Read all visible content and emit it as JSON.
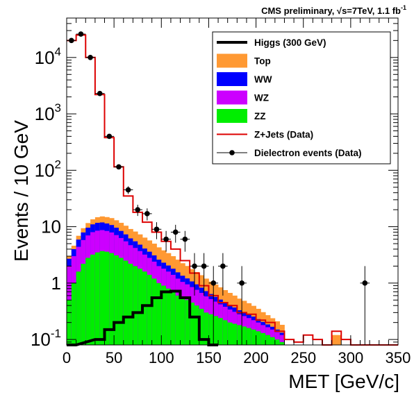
{
  "chart_data": {
    "type": "histogram",
    "caption": {
      "prefix": "CMS preliminary, ",
      "sqrt": "√",
      "energy": "s=7TeV, 1.1 fb",
      "exponent": "-1"
    },
    "xlabel": "MET [GeV/c]",
    "ylabel": "Events / 10 GeV",
    "xlim": [
      0,
      350
    ],
    "ylim": [
      0.08,
      50000
    ],
    "yscale": "log",
    "x_ticks": [
      "0",
      "50",
      "100",
      "150",
      "200",
      "250",
      "300",
      "350"
    ],
    "y_ticks": [
      {
        "value": 0.1,
        "base": "10",
        "exp": "-1"
      },
      {
        "value": 1,
        "base": "1",
        "exp": ""
      },
      {
        "value": 10,
        "base": "10",
        "exp": ""
      },
      {
        "value": 100,
        "base": "10",
        "exp": "2"
      },
      {
        "value": 1000,
        "base": "10",
        "exp": "3"
      },
      {
        "value": 10000,
        "base": "10",
        "exp": "4"
      }
    ],
    "grid": false,
    "legend_position": "top-right",
    "colors": {
      "top": "#ff9933",
      "ww": "#0000ff",
      "wz": "#cc00ff",
      "zz": "#00ee00",
      "higgs": "#000000",
      "zjets": "#dd0000",
      "data": "#000000"
    },
    "legend": [
      {
        "key": "higgs",
        "label": "Higgs (300 GeV)",
        "style": "line-thick"
      },
      {
        "key": "top",
        "label": "Top",
        "style": "fill"
      },
      {
        "key": "ww",
        "label": "WW",
        "style": "fill"
      },
      {
        "key": "wz",
        "label": "WZ",
        "style": "fill"
      },
      {
        "key": "zz",
        "label": "ZZ",
        "style": "fill"
      },
      {
        "key": "zjets",
        "label": "Z+Jets (Data)",
        "style": "line"
      },
      {
        "key": "data",
        "label": "Dielectron events (Data)",
        "style": "marker"
      }
    ],
    "bin_width": 5,
    "stack_bins": {
      "x_lo": [
        0,
        5,
        10,
        15,
        20,
        25,
        30,
        35,
        40,
        45,
        50,
        55,
        60,
        65,
        70,
        75,
        80,
        85,
        90,
        95,
        100,
        105,
        110,
        115,
        120,
        125,
        130,
        135,
        140,
        145,
        150,
        155,
        160,
        165,
        170,
        175,
        180,
        185,
        190,
        195,
        200,
        205,
        210,
        215,
        220,
        225
      ],
      "zz": [
        0.5,
        1.0,
        1.6,
        2.2,
        2.8,
        3.2,
        3.5,
        3.7,
        3.6,
        3.4,
        3.1,
        2.8,
        2.5,
        2.2,
        2.0,
        1.8,
        1.6,
        1.4,
        1.2,
        1.0,
        0.9,
        0.8,
        0.7,
        0.6,
        0.55,
        0.5,
        0.45,
        0.4,
        0.35,
        0.3,
        0.28,
        0.26,
        0.24,
        0.22,
        0.2,
        0.19,
        0.18,
        0.17,
        0.16,
        0.15,
        0.14,
        0.13,
        0.12,
        0.11,
        0.1,
        0.09
      ],
      "wz": [
        1.5,
        2.0,
        2.8,
        3.6,
        4.2,
        4.8,
        5.0,
        5.0,
        4.8,
        4.5,
        4.0,
        3.5,
        3.0,
        2.5,
        2.2,
        1.9,
        1.6,
        1.4,
        1.2,
        1.0,
        0.9,
        0.8,
        0.7,
        0.6,
        0.5,
        0.45,
        0.4,
        0.36,
        0.32,
        0.28,
        0.24,
        0.21,
        0.18,
        0.16,
        0.14,
        0.12,
        0.1,
        0.09,
        0.08,
        0.07,
        0.06,
        0.05,
        0.045,
        0.04,
        0.035,
        0.03
      ],
      "ww": [
        0.7,
        1.0,
        1.5,
        2.1,
        2.6,
        3.0,
        3.2,
        3.2,
        3.0,
        2.8,
        2.5,
        2.1,
        1.8,
        1.5,
        1.3,
        1.1,
        0.9,
        0.8,
        0.7,
        0.6,
        0.5,
        0.45,
        0.4,
        0.35,
        0.3,
        0.26,
        0.22,
        0.19,
        0.16,
        0.14,
        0.12,
        0.1,
        0.09,
        0.08,
        0.07,
        0.06,
        0.05,
        0.045,
        0.04,
        0.035,
        0.03,
        0.025,
        0.02,
        0.018,
        0.015,
        0.012
      ],
      "top": [
        0.3,
        0.6,
        1.0,
        1.5,
        2.0,
        2.5,
        3.0,
        3.3,
        3.4,
        3.5,
        3.4,
        3.3,
        3.1,
        2.9,
        2.7,
        2.5,
        2.3,
        2.1,
        1.9,
        1.7,
        1.5,
        1.35,
        1.2,
        1.05,
        0.9,
        0.8,
        0.7,
        0.62,
        0.55,
        0.48,
        0.42,
        0.37,
        0.33,
        0.29,
        0.26,
        0.23,
        0.2,
        0.18,
        0.16,
        0.14,
        0.12,
        0.1,
        0.085,
        0.07,
        0.06,
        0.05
      ]
    },
    "extra_top_bin": {
      "x_lo": 280,
      "x_hi": 290,
      "value": 0.12
    },
    "higgs_bins": {
      "x_lo": [
        0,
        30,
        40,
        50,
        60,
        70,
        80,
        90,
        100,
        110,
        120,
        130,
        140,
        150
      ],
      "values": [
        0.05,
        0.1,
        0.15,
        0.2,
        0.25,
        0.3,
        0.4,
        0.55,
        0.7,
        0.72,
        0.55,
        0.25,
        0.1,
        0.05
      ]
    },
    "zjets_bins": {
      "x_lo": [
        0,
        10,
        20,
        30,
        40,
        50,
        60,
        70,
        80,
        90,
        100,
        110,
        120,
        130,
        140,
        150,
        160,
        170,
        180,
        190,
        200,
        210,
        220,
        230,
        240,
        250,
        260,
        270,
        280,
        290,
        300,
        310,
        320,
        330,
        340
      ],
      "values": [
        20000,
        25000,
        10000,
        2200,
        380,
        115,
        35,
        18,
        12,
        8,
        5.5,
        4,
        2.5,
        1.5,
        0.9,
        0.6,
        0.45,
        0.4,
        0.3,
        0.28,
        0.22,
        0.2,
        0.14,
        0.1,
        0.09,
        0.12,
        0.1,
        0.08,
        0.14,
        0.1,
        0.08,
        0.07,
        0.06,
        0.05,
        0.05
      ]
    },
    "data_points": [
      {
        "x": 5,
        "y": 20000,
        "err": 140
      },
      {
        "x": 15,
        "y": 26000,
        "err": 160
      },
      {
        "x": 25,
        "y": 10000,
        "err": 100
      },
      {
        "x": 35,
        "y": 2300,
        "err": 48
      },
      {
        "x": 45,
        "y": 400,
        "err": 20
      },
      {
        "x": 55,
        "y": 115,
        "err": 11
      },
      {
        "x": 65,
        "y": 45,
        "err": 7
      },
      {
        "x": 75,
        "y": 20,
        "err": 4.5
      },
      {
        "x": 85,
        "y": 17,
        "err": 4.1
      },
      {
        "x": 95,
        "y": 9,
        "err": 3
      },
      {
        "x": 105,
        "y": 6,
        "err": 2.4
      },
      {
        "x": 115,
        "y": 8,
        "err": 2.8
      },
      {
        "x": 125,
        "y": 6,
        "err": 2.4
      },
      {
        "x": 135,
        "y": 2,
        "err": 1.4
      },
      {
        "x": 145,
        "y": 2,
        "err": 1.4
      },
      {
        "x": 155,
        "y": 1,
        "err": 1
      },
      {
        "x": 165,
        "y": 2,
        "err": 1.4
      },
      {
        "x": 185,
        "y": 1,
        "err": 1
      },
      {
        "x": 315,
        "y": 1,
        "err": 1
      }
    ]
  }
}
